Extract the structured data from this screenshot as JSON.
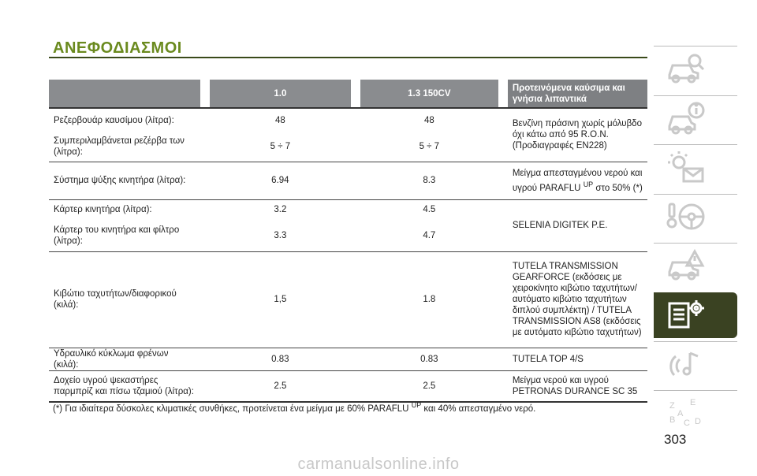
{
  "section_title": "ΑΝΕΦΟΔΙΑΣΜΟΙ",
  "table": {
    "header": {
      "col1": "",
      "col2": "1.0",
      "col3": "1.3 150CV",
      "col4": "Προτεινόμενα καύσιμα και γνήσια λιπαντικά"
    },
    "rows": [
      {
        "label": "Ρεζερβουάρ καυσίμου (λίτρα):",
        "v1": "48",
        "v2": "48"
      },
      {
        "label": "Συμπεριλαμβάνεται ρεζέρβα των (λίτρα):",
        "v1": "5 ÷ 7",
        "v2": "5 ÷ 7"
      },
      {
        "label": "Σύστημα ψύξης κινητήρα (λίτρα):",
        "v1": "6.94",
        "v2": "8.3"
      },
      {
        "label": "Κάρτερ κινητήρα (λίτρα):",
        "v1": "3.2",
        "v2": "4.5"
      },
      {
        "label": "Κάρτερ του κινητήρα και φίλτρο (λίτρα):",
        "v1": "3.3",
        "v2": "4.7"
      },
      {
        "label": "Κιβώτιο ταχυτήτων/διαφορικού (κιλά):",
        "v1": "1,5",
        "v2": "1.8"
      },
      {
        "label": "Υδραυλικό κύκλωμα φρένων (κιλά):",
        "v1": "0.83",
        "v2": "0.83"
      },
      {
        "label": "Δοχείο υγρού ψεκαστήρες παρμπρίζ και πίσω τζαμιού (λίτρα):",
        "v1": "2.5",
        "v2": "2.5"
      }
    ],
    "recommendations": {
      "fuel": "Βενζίνη πράσινη χωρίς μόλυβδο όχι κάτω από 95 R.O.N. (Προδιαγραφές EN228)",
      "coolant_pre": "Μείγμα απεσταγμένου νερού και υγρού PARAFLU",
      "coolant_sup": "UP",
      "coolant_post": " στο 50% (*)",
      "engine_oil": "SELENIA DIGITEK P.E.",
      "gearbox": "TUTELA TRANSMISSION GEARFORCE (εκδόσεις με χειροκίνητο κιβώτιο ταχυτήτων/αυτόματο κιβώτιο ταχυτήτων διπλού συμπλέκτη) / TUTELA TRANSMISSION AS8 (εκδόσεις με αυτόματο κιβώτιο ταχυτήτων)",
      "brake": "TUTELA TOP 4/S",
      "washer": "Μείγμα νερού και υγρού PETRONAS DURANCE SC 35"
    }
  },
  "footnote": {
    "pre": "(*) Για ιδιαίτερα δύσκολες κλιματικές συνθήκες, προτείνεται ένα μείγμα με 60% PARAFLU",
    "sup": "UP",
    "post": " και 40% απεσταγμένο νερό."
  },
  "side_tabs": [
    {
      "icon": "car-search-icon",
      "active": false
    },
    {
      "icon": "car-info-icon",
      "active": false
    },
    {
      "icon": "warning-light-mail-icon",
      "active": false
    },
    {
      "icon": "steering-wheel-icon",
      "active": false
    },
    {
      "icon": "car-warning-icon",
      "active": false
    },
    {
      "icon": "technical-data-icon",
      "active": true
    },
    {
      "icon": "multimedia-icon",
      "active": false
    },
    {
      "icon": "alphabetical-index-icon",
      "active": false
    }
  ],
  "page_number": "303",
  "watermark": "carmanualsonline.info"
}
